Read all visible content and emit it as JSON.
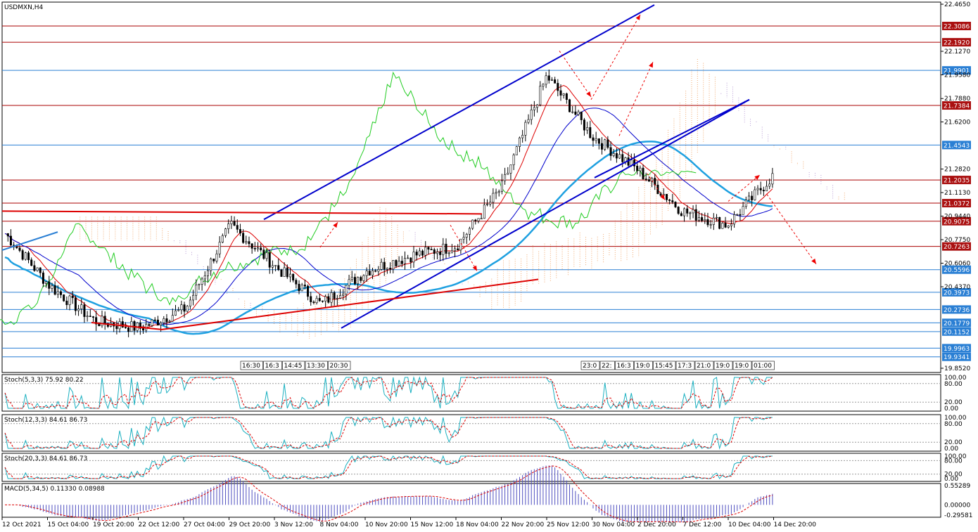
{
  "header": {
    "symbol_title": "USDMXN,H4"
  },
  "colors": {
    "candle": "#000000",
    "red_line": "#c00000",
    "blue_line": "#0000cc",
    "channel": "#0000cc",
    "support_red": "#dd0000",
    "ma": "#1ea0e0",
    "green_line": "#22cc22",
    "tenkan": "#dd0000",
    "kijun": "#0000cc",
    "cloud_orange": "#f0a060",
    "cloud_purple": "#b090d0",
    "arrow_red": "#ee0000",
    "hline_blue": "#2a7fd4",
    "hline_red": "#aa0000",
    "tag_blue": "#2a7fd4",
    "tag_red": "#aa1010",
    "stoch_main": "#1ab0c0",
    "stoch_signal": "#dd0000",
    "macd_hist": "#5050c0",
    "macd_signal": "#dd0000"
  },
  "price_axis": {
    "min": 19.852,
    "max": 22.465,
    "labels": [
      "22.4650",
      "22.1270",
      "21.9580",
      "21.7880",
      "21.6200",
      "21.2820",
      "21.1130",
      "20.9440",
      "20.7750",
      "20.6060",
      "20.4370",
      "19.8520"
    ]
  },
  "horizontal_levels": [
    {
      "value": "22.3086",
      "kind": "red"
    },
    {
      "value": "22.1920",
      "kind": "red"
    },
    {
      "value": "21.9901",
      "kind": "blue"
    },
    {
      "value": "21.7384",
      "kind": "red"
    },
    {
      "value": "21.4543",
      "kind": "blue"
    },
    {
      "value": "21.2035",
      "kind": "red"
    },
    {
      "value": "21.0372",
      "kind": "red"
    },
    {
      "value": "20.9075",
      "kind": "red"
    },
    {
      "value": "20.7263",
      "kind": "red"
    },
    {
      "value": "20.5596",
      "kind": "blue"
    },
    {
      "value": "20.3973",
      "kind": "blue"
    },
    {
      "value": "20.2736",
      "kind": "blue"
    },
    {
      "value": "20.1779",
      "kind": "blue"
    },
    {
      "value": "20.1152",
      "kind": "blue"
    },
    {
      "value": "19.9963",
      "kind": "blue"
    },
    {
      "value": "19.9341",
      "kind": "blue"
    }
  ],
  "time_axis": {
    "labels": [
      "12 Oct 2021",
      "15 Oct 04:00",
      "19 Oct 20:00",
      "22 Oct 12:00",
      "27 Oct 04:00",
      "29 Oct 20:00",
      "3 Nov 12:00",
      "8 Nov 04:00",
      "10 Nov 20:00",
      "15 Nov 12:00",
      "18 Nov 04:00",
      "22 Nov 20:00",
      "25 Nov 12:00",
      "30 Nov 04:00",
      "2 Dec 20:00",
      "7 Dec 12:00",
      "10 Dec 04:00",
      "14 Dec 20:00"
    ]
  },
  "session_markers": {
    "group1": [
      "16:30",
      "16:3",
      "14:45",
      "13:30",
      "20:30"
    ],
    "group2": [
      "23:0",
      "22:",
      "16:3",
      "19:0",
      "15:45",
      "17:3",
      "21:0",
      "19:0",
      "19:0",
      "01:00"
    ]
  },
  "indicators": {
    "stoch1": {
      "label": "Stoch(5,3,3) 75.92 80.22",
      "axis": [
        "100.00",
        "80.00",
        "20.00",
        "0.00"
      ]
    },
    "stoch2": {
      "label": "Stoch(12,3,3) 84.61 86.73",
      "axis": [
        "100.00",
        "80.00",
        "20.00",
        "0.00"
      ]
    },
    "stoch3": {
      "label": "Stoch(20,3,3) 84.61 86.73",
      "axis": [
        "100.00",
        "80.00",
        "20.00",
        "0.00"
      ]
    },
    "macd": {
      "label": "MACD(5,34,5) 0.11330 0.08988",
      "axis": [
        "0.55289",
        "0.00000",
        "-0.29581"
      ]
    }
  },
  "chart_data": {
    "type": "line",
    "title": "USDMXN,H4",
    "ylim": [
      19.852,
      22.465
    ],
    "x": [
      "12 Oct 2021",
      "15 Oct 04:00",
      "19 Oct 20:00",
      "22 Oct 12:00",
      "27 Oct 04:00",
      "29 Oct 20:00",
      "3 Nov 12:00",
      "8 Nov 04:00",
      "10 Nov 20:00",
      "15 Nov 12:00",
      "18 Nov 04:00",
      "22 Nov 20:00",
      "25 Nov 12:00",
      "30 Nov 04:00",
      "2 Dec 20:00",
      "7 Dec 12:00",
      "10 Dec 04:00",
      "14 Dec 20:00"
    ],
    "series": [
      {
        "values": [
          20.82,
          20.44,
          20.19,
          20.14,
          20.28,
          20.88,
          20.58,
          20.31,
          20.55,
          20.66,
          20.73,
          21.15,
          21.95,
          21.52,
          21.28,
          20.98,
          20.88,
          21.23
        ]
      }
    ]
  }
}
